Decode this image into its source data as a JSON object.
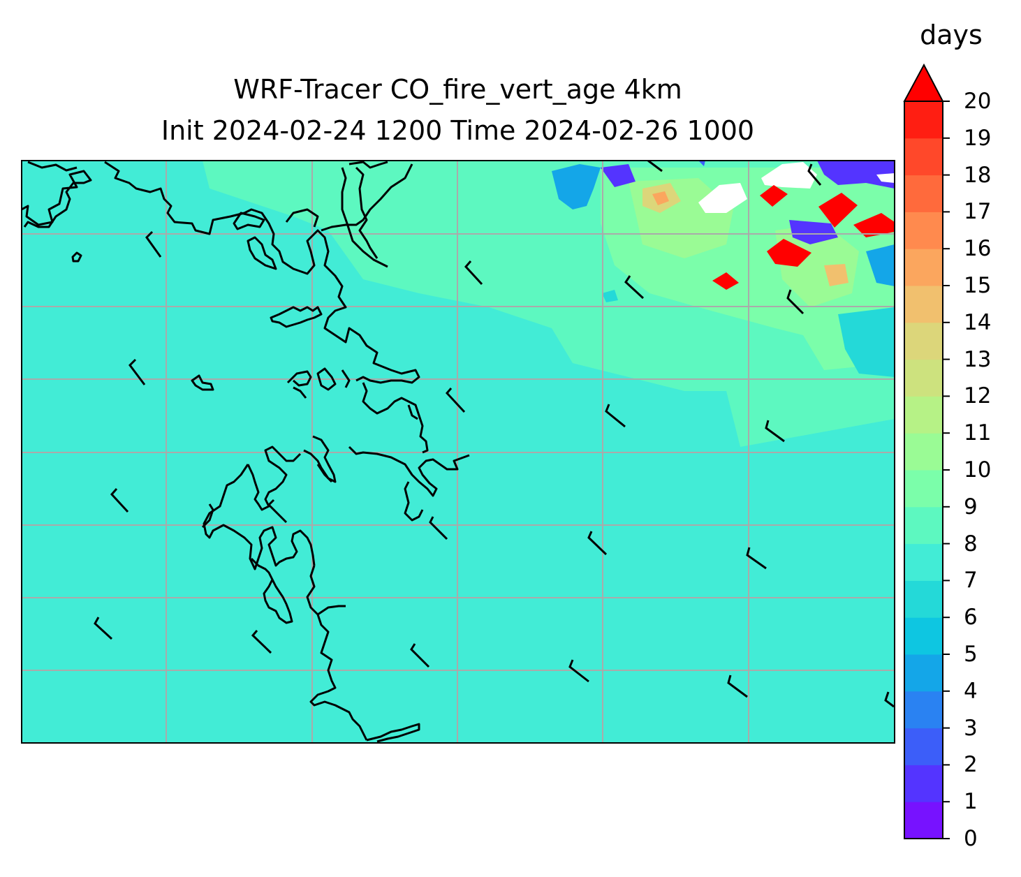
{
  "title": {
    "line1": "WRF-Tracer CO_fire_vert_age 4km",
    "line2": "Init 2024-02-24 1200 Time 2024-02-26 1000"
  },
  "colorbar": {
    "units": "days",
    "ticks": [
      "0",
      "1",
      "2",
      "3",
      "4",
      "5",
      "6",
      "7",
      "8",
      "9",
      "10",
      "11",
      "12",
      "13",
      "14",
      "15",
      "16",
      "17",
      "18",
      "19",
      "20"
    ],
    "extend": "max",
    "colors": [
      "#7712ff",
      "#5434ff",
      "#3c5ef9",
      "#2a82f2",
      "#14a6e8",
      "#0ec6e1",
      "#24d9d8",
      "#42ecd6",
      "#5df8c0",
      "#7bfeaa",
      "#9afb95",
      "#b6f286",
      "#cde27e",
      "#dcd67a",
      "#f1c06e",
      "#fba65e",
      "#ff8a4e",
      "#ff6a3c",
      "#ff482a",
      "#ff1e12"
    ],
    "over_color": "#ff0000"
  },
  "map": {
    "background_color": "#42ecd6",
    "gridline_color": "#aaaaaa",
    "coastline_color": "#000000",
    "wind_barb_color": "#000000",
    "features": [
      "coastline",
      "gridlines",
      "wind-barbs",
      "filled-contours"
    ]
  }
}
